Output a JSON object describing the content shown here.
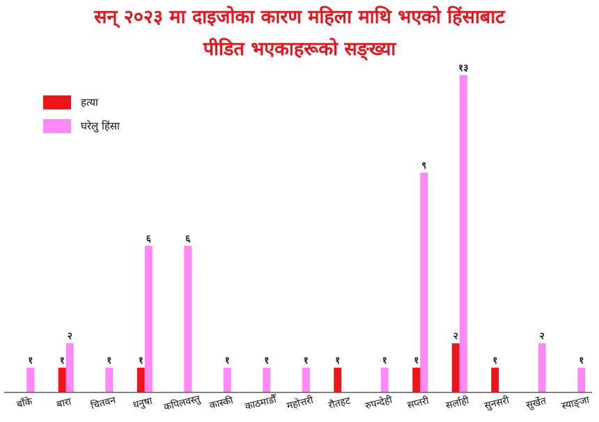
{
  "title": {
    "line1": "सन् २०२३ मा दाइजोका कारण महिला माथि भएको हिंसाबाट",
    "line2": "पीडित भएकाहरूको सङ्ख्या"
  },
  "colors": {
    "murder": "#f0131a",
    "domestic": "#ff88f7",
    "title": "#e8141b",
    "axis": "#555555"
  },
  "chart_data": {
    "type": "bar",
    "title": "सन् २०२३ मा दाइजोका कारण महिला माथि भएको हिंसाबाट पीडित भएकाहरूको सङ्ख्या",
    "xlabel": "",
    "ylabel": "",
    "legend_position": "top-left",
    "grid": false,
    "categories": [
      "बाँके",
      "बारा",
      "चितवन",
      "धनुषा",
      "कपिलवस्तु",
      "कास्की",
      "काठमाडौँ",
      "महोत्तरी",
      "रौतहट",
      "रुपन्देही",
      "सप्तरी",
      "सर्लाही",
      "सुनसरी",
      "सुर्खेत",
      "स्याङ्जा"
    ],
    "series": [
      {
        "name": "हत्या",
        "color": "#f0131a",
        "values": [
          null,
          1,
          null,
          1,
          null,
          null,
          null,
          null,
          1,
          null,
          1,
          2,
          1,
          null,
          null
        ],
        "labels": [
          "",
          "१",
          "",
          "१",
          "",
          "",
          "",
          "",
          "१",
          "",
          "१",
          "२",
          "१",
          "",
          ""
        ]
      },
      {
        "name": "घरेलु हिंसा",
        "color": "#ff88f7",
        "values": [
          1,
          2,
          1,
          6,
          6,
          1,
          1,
          1,
          null,
          1,
          9,
          13,
          null,
          2,
          1
        ],
        "labels": [
          "१",
          "२",
          "१",
          "६",
          "६",
          "१",
          "१",
          "१",
          "",
          "१",
          "९",
          "१३",
          "",
          "२",
          "१"
        ]
      }
    ]
  }
}
